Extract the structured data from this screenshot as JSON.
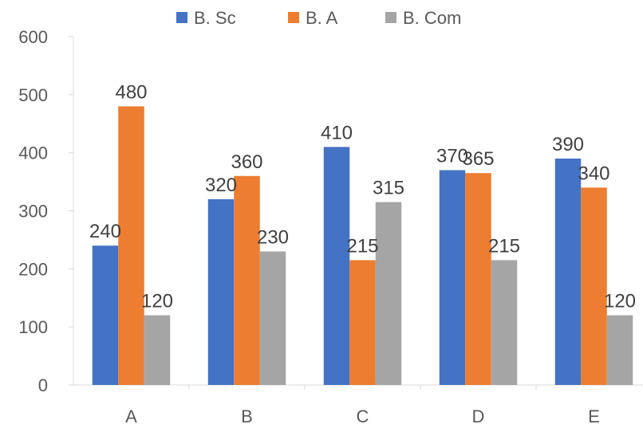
{
  "chart_data": {
    "type": "bar",
    "categories": [
      "A",
      "B",
      "C",
      "D",
      "E"
    ],
    "series": [
      {
        "name": "B. Sc",
        "values": [
          240,
          320,
          410,
          370,
          390
        ],
        "color": "#4472C4"
      },
      {
        "name": "B. A",
        "values": [
          480,
          360,
          215,
          365,
          340
        ],
        "color": "#ED7D31"
      },
      {
        "name": "B. Com",
        "values": [
          120,
          230,
          315,
          215,
          120
        ],
        "color": "#A5A5A5"
      }
    ],
    "data_labels": true,
    "title": "",
    "xlabel": "",
    "ylabel": "",
    "ylim": [
      0,
      600
    ],
    "yticks": [
      0,
      100,
      200,
      300,
      400,
      500,
      600
    ],
    "grid": false,
    "legend_position": "top"
  }
}
